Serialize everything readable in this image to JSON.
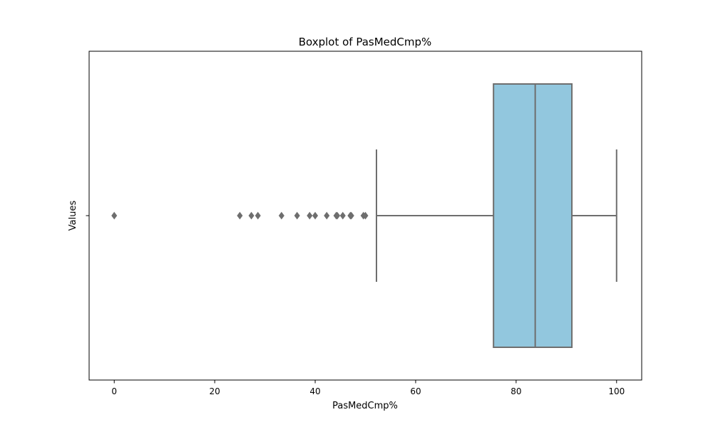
{
  "chart_data": {
    "type": "boxplot",
    "title": "Boxplot of PasMedCmp%",
    "xlabel": "PasMedCmp%",
    "ylabel": "Values",
    "xlim": [
      -5,
      105
    ],
    "xticks": [
      0,
      20,
      40,
      60,
      80,
      100
    ],
    "xtick_labels": [
      "0",
      "20",
      "40",
      "60",
      "80",
      "100"
    ],
    "box": {
      "whisker_low": 52.2,
      "q1": 75.5,
      "median": 83.8,
      "q3": 91.1,
      "whisker_high": 100
    },
    "outliers": [
      0,
      25,
      27.3,
      28.6,
      33.3,
      36.4,
      38.9,
      40,
      42.3,
      44.2,
      44.4,
      45.5,
      47,
      47.2,
      49.6,
      50
    ],
    "colors": {
      "box_fill": "#92c7de",
      "line": "#6e6e6e",
      "outlier": "#6e6e6e"
    }
  }
}
